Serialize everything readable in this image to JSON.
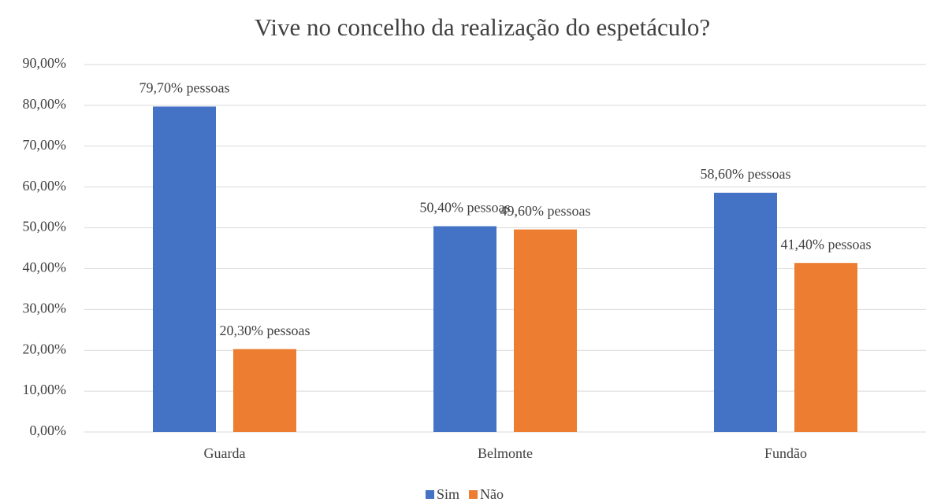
{
  "chart_data": {
    "type": "bar",
    "title": "Vive no concelho da realização do espetáculo?",
    "categories": [
      "Guarda",
      "Belmonte",
      "Fundão"
    ],
    "series": [
      {
        "name": "Sim",
        "color": "#4472c4",
        "values": [
          79.7,
          50.4,
          58.6
        ],
        "value_labels": [
          "79,70% pessoas",
          "50,40% pessoas",
          "58,60% pessoas"
        ]
      },
      {
        "name": "Não",
        "color": "#ed7d31",
        "values": [
          20.3,
          49.6,
          41.4
        ],
        "value_labels": [
          "20,30% pessoas",
          "49,60% pessoas",
          "41,40% pessoas"
        ]
      }
    ],
    "ylim": [
      0,
      90
    ],
    "yticks": [
      {
        "value": 0,
        "label": "0,00%"
      },
      {
        "value": 10,
        "label": "10,00%"
      },
      {
        "value": 20,
        "label": "20,00%"
      },
      {
        "value": 30,
        "label": "30,00%"
      },
      {
        "value": 40,
        "label": "40,00%"
      },
      {
        "value": 50,
        "label": "50,00%"
      },
      {
        "value": 60,
        "label": "60,00%"
      },
      {
        "value": 70,
        "label": "70,00%"
      },
      {
        "value": 80,
        "label": "80,00%"
      },
      {
        "value": 90,
        "label": "90,00%"
      }
    ],
    "grid": true,
    "legend": "bottom"
  }
}
